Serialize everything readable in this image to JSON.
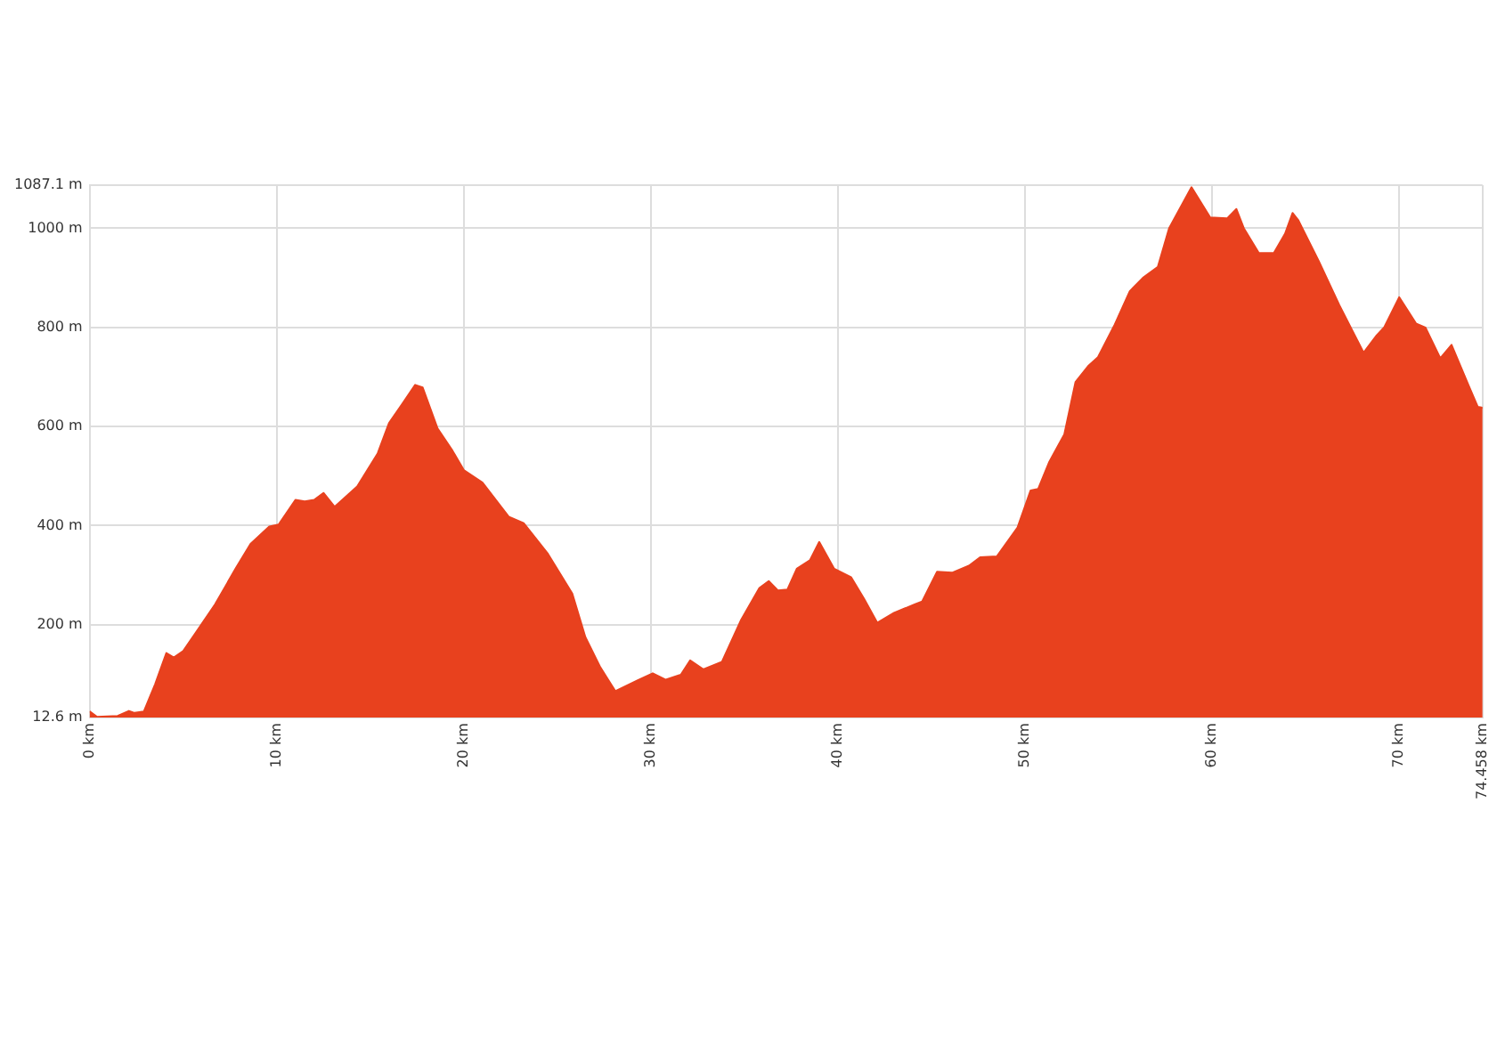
{
  "chart_data": {
    "type": "area",
    "x": [
      0,
      0.4,
      1.5,
      2.1,
      2.4,
      2.9,
      3.5,
      4.1,
      4.5,
      5.0,
      5.8,
      6.7,
      7.8,
      8.6,
      9.6,
      10.1,
      11.0,
      11.5,
      12.0,
      12.5,
      13.1,
      14.3,
      15.4,
      16.0,
      16.7,
      17.4,
      17.8,
      18.6,
      19.4,
      20.0,
      21.0,
      22.4,
      23.2,
      24.5,
      25.8,
      26.5,
      27.3,
      28.1,
      29.3,
      30.1,
      30.8,
      31.6,
      32.1,
      32.8,
      33.8,
      34.8,
      35.8,
      36.3,
      36.8,
      37.3,
      37.8,
      38.5,
      39.0,
      39.8,
      40.7,
      41.4,
      42.1,
      43.0,
      44.1,
      44.5,
      45.3,
      46.1,
      47.0,
      47.6,
      48.5,
      49.6,
      50.3,
      50.7,
      51.3,
      52.1,
      52.7,
      53.4,
      53.9,
      54.8,
      55.6,
      56.3,
      57.1,
      57.7,
      58.9,
      59.9,
      60.8,
      61.3,
      61.7,
      62.5,
      63.3,
      63.9,
      64.3,
      64.6,
      65.7,
      66.8,
      68.1,
      68.8,
      69.2,
      70.0,
      70.9,
      71.4,
      72.2,
      72.8,
      73.7,
      74.2,
      74.458
    ],
    "series": [
      {
        "color": "#e8411e",
        "values": [
          25,
          14,
          16,
          26,
          22,
          25,
          80,
          143,
          134,
          147,
          191,
          241,
          313,
          363,
          398,
          402,
          452,
          449,
          452,
          466,
          438,
          479,
          546,
          607,
          645,
          684,
          679,
          596,
          551,
          512,
          487,
          418,
          405,
          343,
          263,
          175,
          114,
          66,
          88,
          102,
          89,
          99,
          128,
          110,
          125,
          208,
          274,
          288,
          269,
          271,
          313,
          330,
          367,
          313,
          296,
          252,
          204,
          224,
          241,
          247,
          307,
          305,
          319,
          336,
          338,
          396,
          471,
          474,
          529,
          584,
          690,
          723,
          740,
          806,
          873,
          900,
          922,
          1000,
          1083,
          1022,
          1020,
          1039,
          1000,
          950,
          950,
          989,
          1031,
          1017,
          934,
          845,
          749,
          784,
          800,
          861,
          808,
          800,
          738,
          765,
          684,
          640,
          638
        ]
      }
    ],
    "xlim": [
      0,
      74.458
    ],
    "ylim": [
      12.6,
      1087.1
    ],
    "xticks": [
      {
        "value": 0,
        "label": "0 km"
      },
      {
        "value": 10,
        "label": "10 km"
      },
      {
        "value": 20,
        "label": "20 km"
      },
      {
        "value": 30,
        "label": "30 km"
      },
      {
        "value": 40,
        "label": "40 km"
      },
      {
        "value": 50,
        "label": "50 km"
      },
      {
        "value": 60,
        "label": "60 km"
      },
      {
        "value": 70,
        "label": "70 km"
      },
      {
        "value": 74.458,
        "label": "74.458 km"
      }
    ],
    "yticks": [
      {
        "value": 12.6,
        "label": "12.6 m"
      },
      {
        "value": 200,
        "label": "200 m"
      },
      {
        "value": 400,
        "label": "400 m"
      },
      {
        "value": 600,
        "label": "600 m"
      },
      {
        "value": 800,
        "label": "800 m"
      },
      {
        "value": 1000,
        "label": "1000 m"
      },
      {
        "value": 1087.1,
        "label": "1087.1 m"
      }
    ],
    "grid": true,
    "legend": false,
    "marker": "none"
  }
}
